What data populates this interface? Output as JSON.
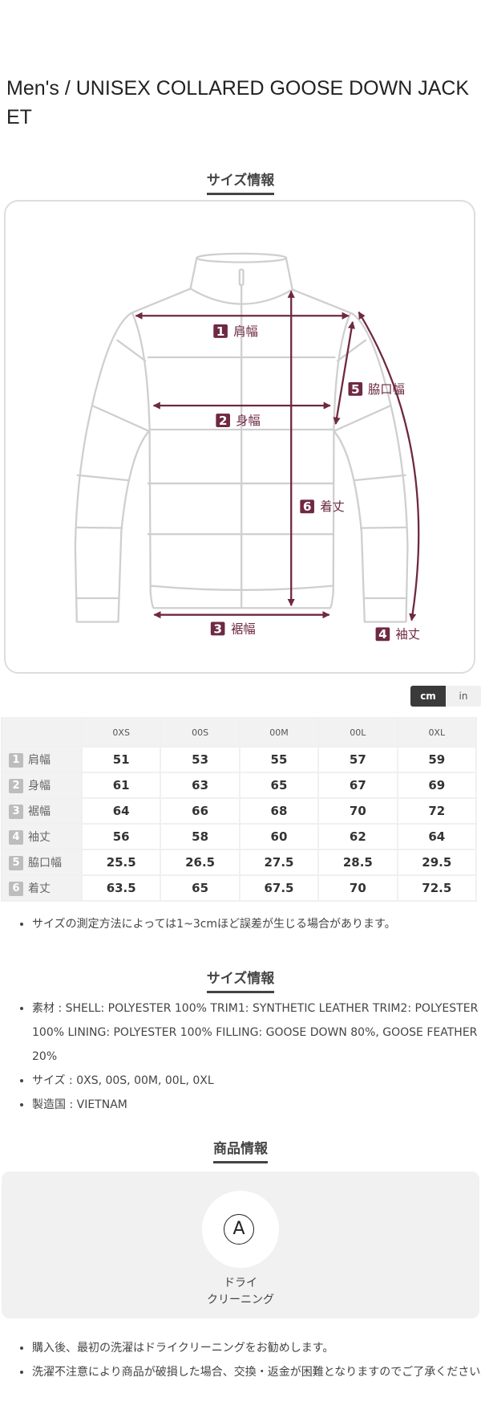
{
  "product": {
    "title": "Men's / UNISEX COLLARED GOOSE DOWN JACKET"
  },
  "size_section": {
    "heading": "サイズ情報",
    "diagram": {
      "accent_color": "#6e2943",
      "labels": [
        {
          "num": "1",
          "text": "肩幅"
        },
        {
          "num": "2",
          "text": "身幅"
        },
        {
          "num": "3",
          "text": "裾幅"
        },
        {
          "num": "4",
          "text": "袖丈"
        },
        {
          "num": "5",
          "text": "脇口幅"
        },
        {
          "num": "6",
          "text": "着丈"
        }
      ]
    },
    "units": {
      "cm": "cm",
      "in": "in",
      "selected": "cm"
    },
    "table": {
      "columns": [
        "0XS",
        "00S",
        "00M",
        "00L",
        "0XL"
      ],
      "rows": [
        {
          "num": "1",
          "label": "肩幅",
          "values": [
            "51",
            "53",
            "55",
            "57",
            "59"
          ]
        },
        {
          "num": "2",
          "label": "身幅",
          "values": [
            "61",
            "63",
            "65",
            "67",
            "69"
          ]
        },
        {
          "num": "3",
          "label": "裾幅",
          "values": [
            "64",
            "66",
            "68",
            "70",
            "72"
          ]
        },
        {
          "num": "4",
          "label": "袖丈",
          "values": [
            "56",
            "58",
            "60",
            "62",
            "64"
          ]
        },
        {
          "num": "5",
          "label": "脇口幅",
          "values": [
            "25.5",
            "26.5",
            "27.5",
            "28.5",
            "29.5"
          ]
        },
        {
          "num": "6",
          "label": "着丈",
          "values": [
            "63.5",
            "65",
            "67.5",
            "70",
            "72.5"
          ]
        }
      ]
    },
    "note": "サイズの測定方法によっては1~3cmほど誤差が生じる場合があります。"
  },
  "spec_section": {
    "heading": "サイズ情報",
    "items": [
      "素材 : SHELL: POLYESTER 100% TRIM1: SYNTHETIC LEATHER TRIM2: POLYESTER 100% LINING: POLYESTER 100% FILLING: GOOSE DOWN 80%,  GOOSE FEATHER 20%",
      "サイズ : 0XS, 00S, 00M, 00L, 0XL",
      "製造国 : VIETNAM"
    ]
  },
  "care_section": {
    "heading": "商品情報",
    "icon": {
      "name": "dry-clean-icon",
      "glyph": "A",
      "label_line1": "ドライ",
      "label_line2": "クリーニング"
    },
    "notes": [
      "購入後、最初の洗濯はドライクリーニングをお勧めします。",
      "洗濯不注意により商品が破損した場合、交換・返金が困難となりますのでご了承ください。"
    ]
  }
}
